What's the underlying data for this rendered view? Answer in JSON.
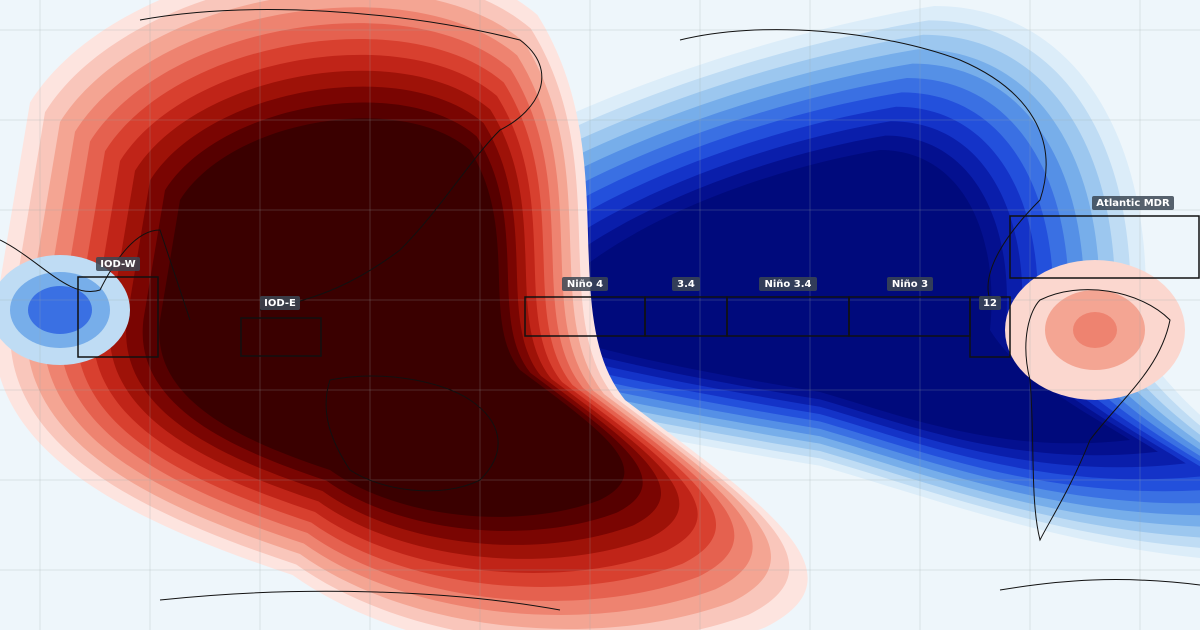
{
  "regions": [
    {
      "label": "IOD-W"
    },
    {
      "label": "IOD-E"
    },
    {
      "label": "Niño 4"
    },
    {
      "label": "3.4"
    },
    {
      "label": "Niño 3.4"
    },
    {
      "label": "Niño 3"
    },
    {
      "label": "12"
    },
    {
      "label": "Atlantic MDR"
    }
  ]
}
